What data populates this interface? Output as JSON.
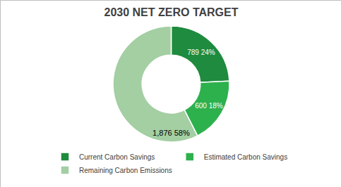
{
  "chart_data": {
    "type": "pie",
    "title": "2030 NET ZERO TARGET",
    "categories": [
      "Current Carbon Savings",
      "Estimated Carbon Savings",
      "Remaining Carbon Emissions"
    ],
    "values": [
      789,
      600,
      1876
    ],
    "value_labels": [
      "789 24%",
      "600 18%",
      "1,876 58%"
    ],
    "colors": [
      "#1e8b3e",
      "#2db14d",
      "#a3cfa3"
    ],
    "data_labels": true,
    "legend": "bottom"
  }
}
